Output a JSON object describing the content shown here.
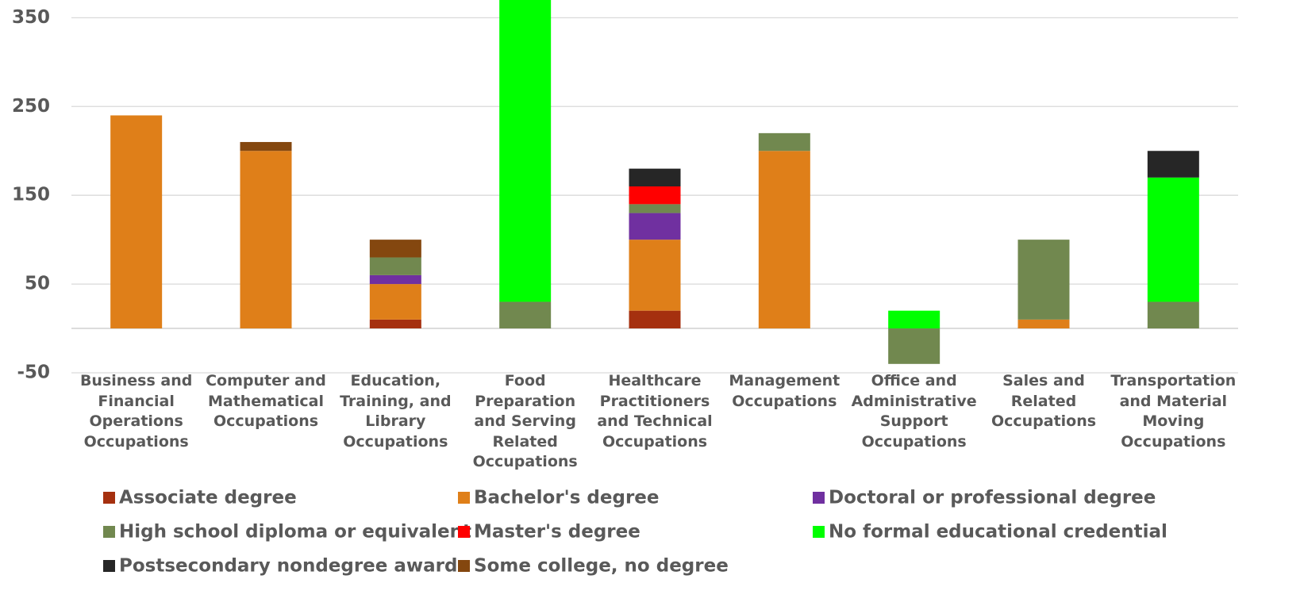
{
  "chart_data": {
    "type": "stacked_bar",
    "categories": [
      "Business and\nFinancial\nOperations\nOccupations",
      "Computer and\nMathematical\nOccupations",
      "Education,\nTraining, and\nLibrary\nOccupations",
      "Food\nPreparation\nand Serving\nRelated\nOccupations",
      "Healthcare\nPractitioners\nand Technical\nOccupations",
      "Management\nOccupations",
      "Office and\nAdministrative\nSupport\nOccupations",
      "Sales and\nRelated\nOccupations",
      "Transportation\nand Material\nMoving\nOccupations"
    ],
    "series": [
      {
        "name": "Associate degree",
        "color": "#a5300f",
        "values": [
          null,
          null,
          10,
          null,
          20,
          null,
          null,
          null,
          null
        ]
      },
      {
        "name": "Bachelor's degree",
        "color": "#df7f19",
        "values": [
          240,
          200,
          40,
          null,
          80,
          200,
          null,
          10,
          null
        ]
      },
      {
        "name": "Doctoral or professional degree",
        "color": "#7030a0",
        "values": [
          null,
          null,
          10,
          null,
          30,
          null,
          null,
          null,
          null
        ]
      },
      {
        "name": "High school diploma or equivalent",
        "color": "#71884f",
        "values": [
          null,
          null,
          20,
          30,
          10,
          20,
          -40,
          90,
          30
        ]
      },
      {
        "name": "Master's degree",
        "color": "#ff0000",
        "values": [
          null,
          null,
          null,
          null,
          20,
          null,
          null,
          null,
          null
        ]
      },
      {
        "name": "No formal educational credential",
        "color": "#00ff00",
        "values": [
          null,
          null,
          null,
          370,
          null,
          null,
          20,
          null,
          140
        ]
      },
      {
        "name": "Postsecondary nondegree award",
        "color": "#262626",
        "values": [
          null,
          null,
          null,
          null,
          20,
          null,
          null,
          null,
          30
        ]
      },
      {
        "name": "Some college, no degree",
        "color": "#84470f",
        "values": [
          null,
          10,
          20,
          null,
          null,
          null,
          null,
          null,
          null
        ]
      }
    ],
    "ylim": [
      -50,
      370
    ],
    "yticks": [
      -50,
      50,
      150,
      250,
      350
    ],
    "grid": true,
    "legend": "bottom"
  }
}
